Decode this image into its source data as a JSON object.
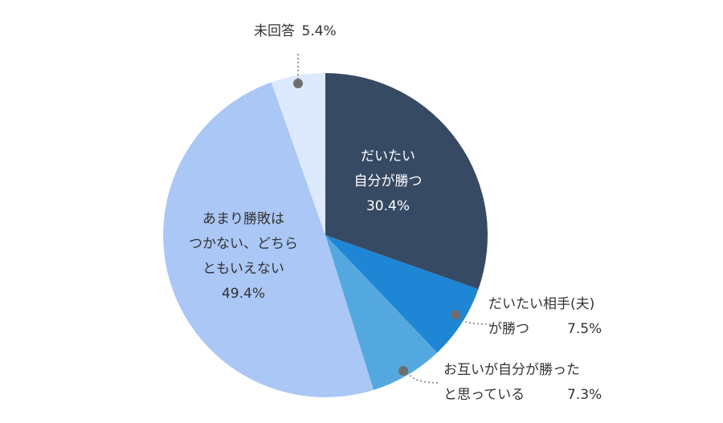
{
  "chart_data": {
    "type": "pie",
    "slices": [
      {
        "lines": [
          "だいたい",
          "自分が勝つ"
        ],
        "value": 30.4,
        "value_label": "30.4%",
        "color": "#374a64"
      },
      {
        "lines": [
          "だいたい相手(夫)",
          "が勝つ"
        ],
        "value": 7.5,
        "value_label": "7.5%",
        "color": "#1e86d4"
      },
      {
        "lines": [
          "お互いが自分が勝った",
          "と思っている"
        ],
        "value": 7.3,
        "value_label": "7.3%",
        "color": "#54a8e0"
      },
      {
        "lines": [
          "あまり勝敗は",
          "つかない、どちら",
          "ともいえない"
        ],
        "value": 49.4,
        "value_label": "49.4%",
        "color": "#aac7f5"
      },
      {
        "lines": [
          "未回答"
        ],
        "value": 5.4,
        "value_label": "5.4%",
        "color": "#dde9fc"
      }
    ],
    "start_angle_deg": 0,
    "direction": "clockwise",
    "legend": "none",
    "grid": false
  }
}
